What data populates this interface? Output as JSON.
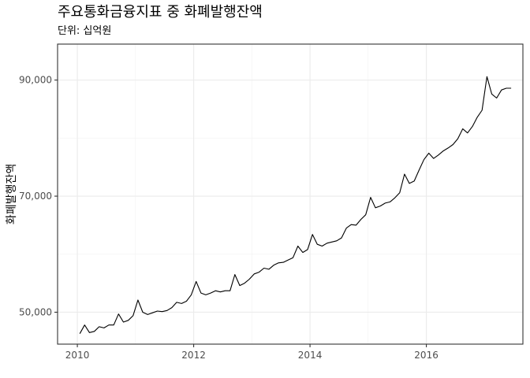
{
  "chart_data": {
    "type": "line",
    "title": "주요통화금융지표 중 화폐발행잔액",
    "subtitle": "단위: 십억원",
    "xlabel": "",
    "ylabel": "화폐발행잔액",
    "xlim": [
      2009.66,
      2017.66
    ],
    "ylim": [
      44500,
      96200
    ],
    "x_ticks": [
      {
        "value": 2010,
        "label": "2010"
      },
      {
        "value": 2012,
        "label": "2012"
      },
      {
        "value": 2014,
        "label": "2014"
      },
      {
        "value": 2016,
        "label": "2016"
      }
    ],
    "y_ticks": [
      {
        "value": 50000,
        "label": "50,000"
      },
      {
        "value": 70000,
        "label": "70,000"
      },
      {
        "value": 90000,
        "label": "90,000"
      }
    ],
    "grid": true,
    "line_color": "#000000",
    "series": [
      {
        "name": "",
        "x": [
          2010.042,
          2010.125,
          2010.208,
          2010.292,
          2010.375,
          2010.458,
          2010.542,
          2010.625,
          2010.708,
          2010.792,
          2010.875,
          2010.958,
          2011.042,
          2011.125,
          2011.208,
          2011.292,
          2011.375,
          2011.458,
          2011.542,
          2011.625,
          2011.708,
          2011.792,
          2011.875,
          2011.958,
          2012.042,
          2012.125,
          2012.208,
          2012.292,
          2012.375,
          2012.458,
          2012.542,
          2012.625,
          2012.708,
          2012.792,
          2012.875,
          2012.958,
          2013.042,
          2013.125,
          2013.208,
          2013.292,
          2013.375,
          2013.458,
          2013.542,
          2013.625,
          2013.708,
          2013.792,
          2013.875,
          2013.958,
          2014.042,
          2014.125,
          2014.208,
          2014.292,
          2014.375,
          2014.458,
          2014.542,
          2014.625,
          2014.708,
          2014.792,
          2014.875,
          2014.958,
          2015.042,
          2015.125,
          2015.208,
          2015.292,
          2015.375,
          2015.458,
          2015.542,
          2015.625,
          2015.708,
          2015.792,
          2015.875,
          2015.958,
          2016.042,
          2016.125,
          2016.208,
          2016.292,
          2016.375,
          2016.458,
          2016.542,
          2016.625,
          2016.708,
          2016.792,
          2016.875,
          2016.958,
          2017.042,
          2017.125,
          2017.208,
          2017.292,
          2017.375,
          2017.458
        ],
        "values": [
          46300,
          47800,
          46500,
          46700,
          47500,
          47300,
          47800,
          47800,
          49700,
          48300,
          48600,
          49400,
          52100,
          50000,
          49600,
          49900,
          50200,
          50100,
          50300,
          50800,
          51700,
          51500,
          51900,
          53000,
          55300,
          53300,
          53000,
          53300,
          53700,
          53500,
          53700,
          53700,
          56500,
          54600,
          55000,
          55700,
          56600,
          56900,
          57600,
          57400,
          58100,
          58500,
          58600,
          59000,
          59400,
          61400,
          60300,
          60800,
          63400,
          61700,
          61400,
          61900,
          62100,
          62300,
          62800,
          64500,
          65100,
          65000,
          66000,
          66800,
          69800,
          68000,
          68300,
          68800,
          69000,
          69700,
          70600,
          73800,
          72200,
          72600,
          74500,
          76300,
          77400,
          76500,
          77100,
          77800,
          78300,
          78900,
          79900,
          81600,
          80900,
          82000,
          83600,
          84800,
          90600,
          87600,
          86900,
          88300,
          88600,
          88600
        ]
      }
    ]
  }
}
